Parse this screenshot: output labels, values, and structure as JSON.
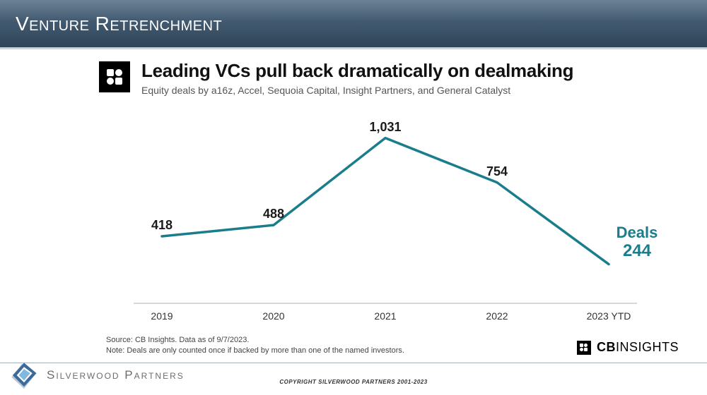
{
  "slide": {
    "title": "Venture Retrenchment",
    "title_bg_gradient": [
      "#6d8296",
      "#425a70",
      "#2f4558"
    ],
    "title_color": "#ffffff",
    "title_fontsize": 28
  },
  "chart": {
    "type": "line",
    "icon_bg": "#000000",
    "icon_fg": "#ffffff",
    "title": "Leading VCs pull back dramatically on dealmaking",
    "title_fontsize": 26,
    "title_color": "#111111",
    "subtitle": "Equity deals by a16z, Accel, Sequoia Capital, Insight Partners, and General Catalyst",
    "subtitle_fontsize": 14,
    "subtitle_color": "#555555",
    "categories": [
      "2019",
      "2020",
      "2021",
      "2022",
      "2023 YTD"
    ],
    "values": [
      418,
      488,
      1031,
      754,
      244
    ],
    "x_positions_pct": [
      10,
      30,
      50,
      70,
      90
    ],
    "ylim": [
      0,
      1100
    ],
    "line_color": "#1a7d8b",
    "line_width": 3.5,
    "axis_color": "#b0b0b0",
    "label_color": "#1a1a1a",
    "label_fontsize": 18,
    "xlabel_color": "#333333",
    "xlabel_fontsize": 14,
    "last_label_heading": "Deals",
    "last_label_value": "244",
    "last_label_color": "#1a7d8b"
  },
  "source": {
    "line1": "Source: CB Insights. Data as of 9/7/2023.",
    "line2": "Note: Deals are only counted once if backed by more than one of the named investors.",
    "fontsize": 11,
    "color": "#444444"
  },
  "brand": {
    "cb_text_bold": "CB",
    "cb_text_rest": "INSIGHTS",
    "cb_color": "#000000"
  },
  "footer": {
    "company": "Silverwood Partners",
    "company_color": "#6c6c6c",
    "copyright": "COPYRIGHT SILVERWOOD PARTNERS 2001-2023",
    "logo_colors": {
      "outer": "#3c6a9a",
      "inner": "#82b7e0",
      "shadow": "#8fa3b3"
    }
  }
}
